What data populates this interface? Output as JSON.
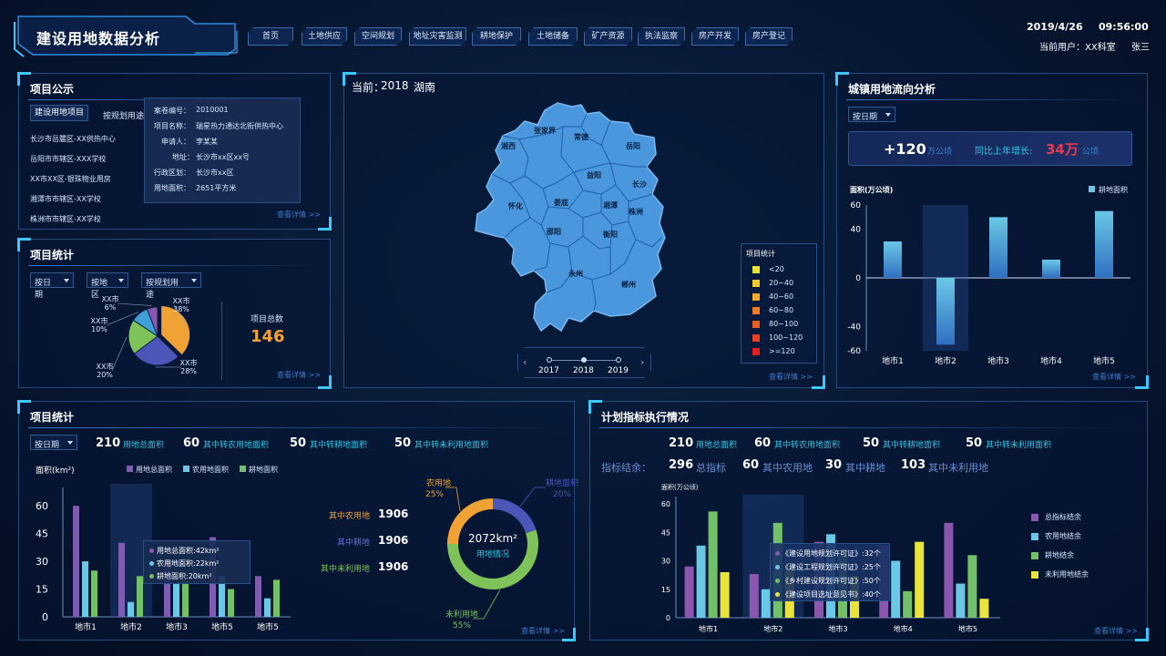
{
  "header": {
    "title": "建设用地数据分析",
    "date": "2019/4/26",
    "time": "09:56:00",
    "user_label": "当前用户：XX科室",
    "user_name": "张三"
  },
  "nav": [
    "首页",
    "土地供应",
    "空间规划",
    "地址灾害监测",
    "耕地保护",
    "土地储备",
    "矿产资源",
    "执法监察",
    "房产开发",
    "房产登记"
  ],
  "project_notice": {
    "title": "项目公示",
    "tabs": [
      "建设用地项目",
      "按规划用途"
    ],
    "items": [
      "长沙市岳麓区-XX供热中心",
      "岳阳市市辖区-XXX学校",
      "XX市XX区-银珠物业用房",
      "湘潭市市辖区-XX学校",
      "株洲市市辖区-XX学校"
    ],
    "popup": [
      {
        "k": "案卷编号：",
        "v": "2010001"
      },
      {
        "k": "项目名称：",
        "v": "瑞星热力通达北街供热中心"
      },
      {
        "k": "申请人：",
        "v": "李某某"
      },
      {
        "k": "地址：",
        "v": "长沙市xx区xx号"
      },
      {
        "k": "行政区划：",
        "v": "长沙市xx区"
      },
      {
        "k": "用地面积：",
        "v": "2651平方米"
      }
    ],
    "more": "查看详情 >>"
  },
  "project_stats": {
    "title": "项目统计",
    "filters": [
      "按日期",
      "按地区",
      "按规划用途"
    ],
    "total_label": "项目总数",
    "total": "146",
    "more": "查看详情 >>"
  },
  "pie_chart": {
    "type": "pie",
    "slices": [
      {
        "label": "XX市",
        "value": 38,
        "pct": "38%",
        "color": "#f0a235"
      },
      {
        "label": "XX市",
        "value": 28,
        "pct": "28%",
        "color": "#4b56b8"
      },
      {
        "label": "XX市",
        "value": 20,
        "pct": "20%",
        "color": "#7dc35a"
      },
      {
        "label": "XX市",
        "value": 10,
        "pct": "10%",
        "color": "#3fa0d8"
      },
      {
        "label": "XX市",
        "value": 6,
        "pct": "6%",
        "color": "#8a56b0"
      }
    ]
  },
  "map": {
    "title_prefix": "当前：",
    "year": "2018",
    "region": "湖南",
    "cities": [
      "张家界",
      "湘西",
      "常德",
      "岳阳",
      "益阳",
      "长沙",
      "怀化",
      "娄底",
      "湘潭",
      "株洲",
      "邵阳",
      "衡阳",
      "永州",
      "郴州"
    ],
    "legend_title": "项目统计",
    "legend": [
      {
        "label": "<20",
        "color": "#e8e43a"
      },
      {
        "label": "20~40",
        "color": "#f0c82e"
      },
      {
        "label": "40~60",
        "color": "#f0a82e"
      },
      {
        "label": "60~80",
        "color": "#ee7b25"
      },
      {
        "label": "80~100",
        "color": "#ec5d22"
      },
      {
        "label": "100~120",
        "color": "#e8401e"
      },
      {
        "label": ">=120",
        "color": "#e0221c"
      }
    ],
    "timeline": [
      "2017",
      "2018",
      "2019"
    ],
    "more": "查看详情 >>"
  },
  "flow": {
    "title": "城镇用地流向分析",
    "filter": "按日期",
    "value": "+120",
    "unit": "万公顷",
    "growth_label": "同比上年增长:",
    "growth": "34万",
    "growth_unit": "公顷",
    "more": "查看详情 >>"
  },
  "chart_flow": {
    "type": "bar",
    "ylabel": "面积(万公顷)",
    "legend": "耕地面积",
    "categories": [
      "地市1",
      "地市2",
      "地市3",
      "地市4",
      "地市5"
    ],
    "values": [
      30,
      -55,
      50,
      15,
      55
    ],
    "ylim": [
      -60,
      60
    ],
    "yticks": [
      "60",
      "40",
      "0",
      "-40",
      "-60"
    ]
  },
  "bottom_left": {
    "title": "项目统计",
    "filter": "按日期",
    "summary": [
      {
        "num": "210",
        "label": "用地总面积"
      },
      {
        "num": "60",
        "label": "其中转农用地面积"
      },
      {
        "num": "50",
        "label": "其中转耕地面积"
      },
      {
        "num": "50",
        "label": "其中转未利用地面积"
      }
    ],
    "mid": [
      {
        "label": "其中农用地",
        "num": "1906"
      },
      {
        "label": "其中耕地",
        "num": "1906"
      },
      {
        "label": "其中未利用地",
        "num": "1906"
      }
    ],
    "tooltip": [
      "用地总面积:42km²",
      "农用地面积:22km²",
      "耕地面积:20km²"
    ],
    "more": "查看详情 >>"
  },
  "chart_area": {
    "type": "bar",
    "ylabel": "面积(km²)",
    "categories": [
      "地市1",
      "地市2",
      "地市3",
      "地市5",
      "地市5"
    ],
    "series": [
      {
        "name": "用地总面积",
        "color": "#7e5cb0",
        "values": [
          60,
          40,
          30,
          43,
          22
        ]
      },
      {
        "name": "农用地面积",
        "color": "#6ac8e6",
        "values": [
          30,
          8,
          18,
          22,
          10
        ]
      },
      {
        "name": "耕地面积",
        "color": "#72c067",
        "values": [
          25,
          22,
          20,
          15,
          20
        ]
      }
    ],
    "ylim": [
      0,
      65
    ],
    "yticks": [
      "60",
      "45",
      "30",
      "15",
      "0"
    ]
  },
  "donut": {
    "type": "pie",
    "center": "2072km²",
    "center_sub": "用地情况",
    "slices": [
      {
        "label": "农用地",
        "pct": "25%",
        "value": 25,
        "color": "#f0a235"
      },
      {
        "label": "耕地面积",
        "pct": "20%",
        "value": 20,
        "color": "#4b56b8"
      },
      {
        "label": "未利用地",
        "pct": "55%",
        "value": 55,
        "color": "#7dc35a"
      }
    ]
  },
  "plan": {
    "title": "计划指标执行情况",
    "summary": [
      {
        "num": "210",
        "label": "用地总面积"
      },
      {
        "num": "60",
        "label": "其中转农用地面积"
      },
      {
        "num": "50",
        "label": "其中转耕地面积"
      },
      {
        "num": "50",
        "label": "其中转未利用面积"
      }
    ],
    "balance_label": "指标结余：",
    "balance": [
      {
        "num": "296",
        "label": "总指标"
      },
      {
        "num": "60",
        "label": "其中农用地"
      },
      {
        "num": "30",
        "label": "其中耕地"
      },
      {
        "num": "103",
        "label": "其中未利用地"
      }
    ],
    "tooltip": [
      "《建设用地规划许可证》:32个",
      "《建设工程规划许可证》:25个",
      "《乡村建设规划许可证》:50个",
      "《建设项目选址意见书》:40个"
    ],
    "more": "查看详情 >>"
  },
  "chart_plan": {
    "type": "bar",
    "ylabel": "面积(万公顷)",
    "categories": [
      "地市1",
      "地市2",
      "地市3",
      "地市4",
      "地市5"
    ],
    "series": [
      {
        "name": "总指标结余",
        "color": "#8a56b0",
        "values": [
          27,
          23,
          40,
          38,
          50
        ]
      },
      {
        "name": "农用地结余",
        "color": "#6ac8e6",
        "values": [
          38,
          15,
          44,
          30,
          18
        ]
      },
      {
        "name": "耕地结余",
        "color": "#72c067",
        "values": [
          56,
          50,
          33,
          14,
          33
        ]
      },
      {
        "name": "未利用地结余",
        "color": "#e8e43a",
        "values": [
          24,
          25,
          22,
          40,
          10
        ]
      }
    ],
    "ylim": [
      0,
      60
    ],
    "yticks": [
      "60",
      "45",
      "30",
      "15",
      "0"
    ]
  }
}
